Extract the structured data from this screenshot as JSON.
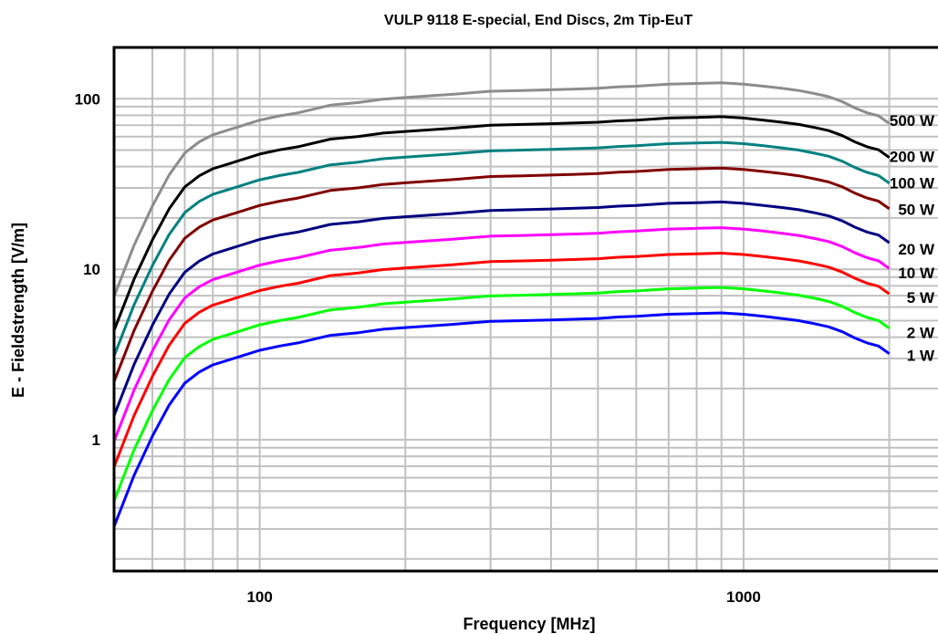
{
  "chart_data": {
    "type": "line",
    "title": "VULP 9118 E-special, End Discs, 2m Tip-EuT",
    "xlabel": "Frequency [MHz]",
    "ylabel": "E - Fieldstrength [V/m]",
    "x_scale": "log",
    "y_scale": "log",
    "xlim": [
      50,
      2600
    ],
    "ylim": [
      0.17,
      200
    ],
    "x_ticks": [
      {
        "value": 100,
        "label": "100"
      },
      {
        "value": 1000,
        "label": "1000"
      }
    ],
    "y_ticks": [
      {
        "value": 1,
        "label": "1"
      },
      {
        "value": 10,
        "label": "10"
      },
      {
        "value": 100,
        "label": "100"
      }
    ],
    "grid": true,
    "base_series_1W": {
      "x": [
        50,
        55,
        60,
        65,
        70,
        75,
        80,
        90,
        100,
        110,
        120,
        140,
        160,
        180,
        200,
        250,
        300,
        350,
        400,
        450,
        500,
        550,
        600,
        700,
        800,
        900,
        1000,
        1100,
        1200,
        1300,
        1400,
        1500,
        1600,
        1700,
        1800,
        1900,
        2000
      ],
      "y": [
        0.31,
        0.62,
        1.05,
        1.6,
        2.15,
        2.5,
        2.75,
        3.05,
        3.35,
        3.55,
        3.7,
        4.1,
        4.25,
        4.45,
        4.55,
        4.75,
        4.95,
        5.0,
        5.05,
        5.1,
        5.15,
        5.25,
        5.3,
        5.45,
        5.5,
        5.55,
        5.45,
        5.3,
        5.15,
        5.0,
        4.8,
        4.6,
        4.3,
        3.95,
        3.7,
        3.55,
        3.2
      ]
    },
    "series": [
      {
        "name": "500 W",
        "factor": 22.36,
        "color": "#8c8c8c",
        "end_value": 73
      },
      {
        "name": "200 W",
        "factor": 14.14,
        "color": "#000000",
        "end_value": 46
      },
      {
        "name": "100 W",
        "factor": 10.0,
        "color": "#008080",
        "end_value": 33
      },
      {
        "name": "50 W",
        "factor": 7.07,
        "color": "#800000",
        "end_value": 23
      },
      {
        "name": "20 W",
        "factor": 4.47,
        "color": "#000080",
        "end_value": 14.5
      },
      {
        "name": "10 W",
        "factor": 3.16,
        "color": "#ff00ff",
        "end_value": 10.3
      },
      {
        "name": "5 W",
        "factor": 2.24,
        "color": "#ff0000",
        "end_value": 7.2
      },
      {
        "name": "2 W",
        "factor": 1.41,
        "color": "#00ff00",
        "end_value": 4.6
      },
      {
        "name": "1 W",
        "factor": 1.0,
        "color": "#0000ff",
        "end_value": 3.2
      }
    ],
    "legend_placement": "right"
  }
}
